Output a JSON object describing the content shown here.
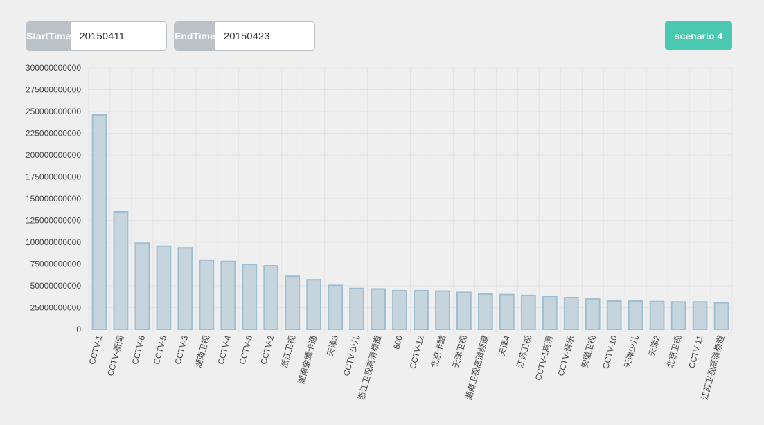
{
  "controls": {
    "start_label": "StartTime",
    "start_value": "20150411",
    "end_label": "EndTime",
    "end_value": "20150423",
    "scenario_label": "scenario 4"
  },
  "colors": {
    "bar_fill": "#c6d4de",
    "bar_stroke": "#9ebfd2",
    "grid": "#e3e3e3",
    "button": "#48c9b0",
    "addon": "#bcc3c8"
  },
  "chart_data": {
    "type": "bar",
    "title": "",
    "xlabel": "",
    "ylabel": "",
    "ylim": [
      0,
      300000000000
    ],
    "yticks": [
      0,
      25000000000,
      50000000000,
      75000000000,
      100000000000,
      125000000000,
      150000000000,
      175000000000,
      200000000000,
      225000000000,
      250000000000,
      275000000000,
      300000000000
    ],
    "grid": true,
    "categories": [
      "CCTV-1",
      "CCTV-新闻",
      "CCTV-6",
      "CCTV-5",
      "CCTV-3",
      "湖南卫视",
      "CCTV-4",
      "CCTV-8",
      "CCTV-2",
      "浙江卫视",
      "湖南金鹰卡通",
      "天津3",
      "CCTV-少儿",
      "浙江卫视高清频道",
      "800",
      "CCTV-12",
      "北京卡酷",
      "天津卫视",
      "湖南卫视高清频道",
      "天津4",
      "江苏卫视",
      "CCTV-1高清",
      "CCTV-音乐",
      "安徽卫视",
      "CCTV-10",
      "天津少儿",
      "天津2",
      "北京卫视",
      "CCTV-11",
      "江苏卫视高清频道"
    ],
    "values": [
      246000000000,
      135000000000,
      99000000000,
      95500000000,
      93500000000,
      79500000000,
      78000000000,
      74500000000,
      73000000000,
      61000000000,
      57000000000,
      50500000000,
      47000000000,
      46500000000,
      44500000000,
      44500000000,
      44000000000,
      42500000000,
      40500000000,
      40000000000,
      39000000000,
      38000000000,
      36500000000,
      35000000000,
      32500000000,
      32500000000,
      32000000000,
      31500000000,
      31500000000,
      30500000000
    ]
  }
}
